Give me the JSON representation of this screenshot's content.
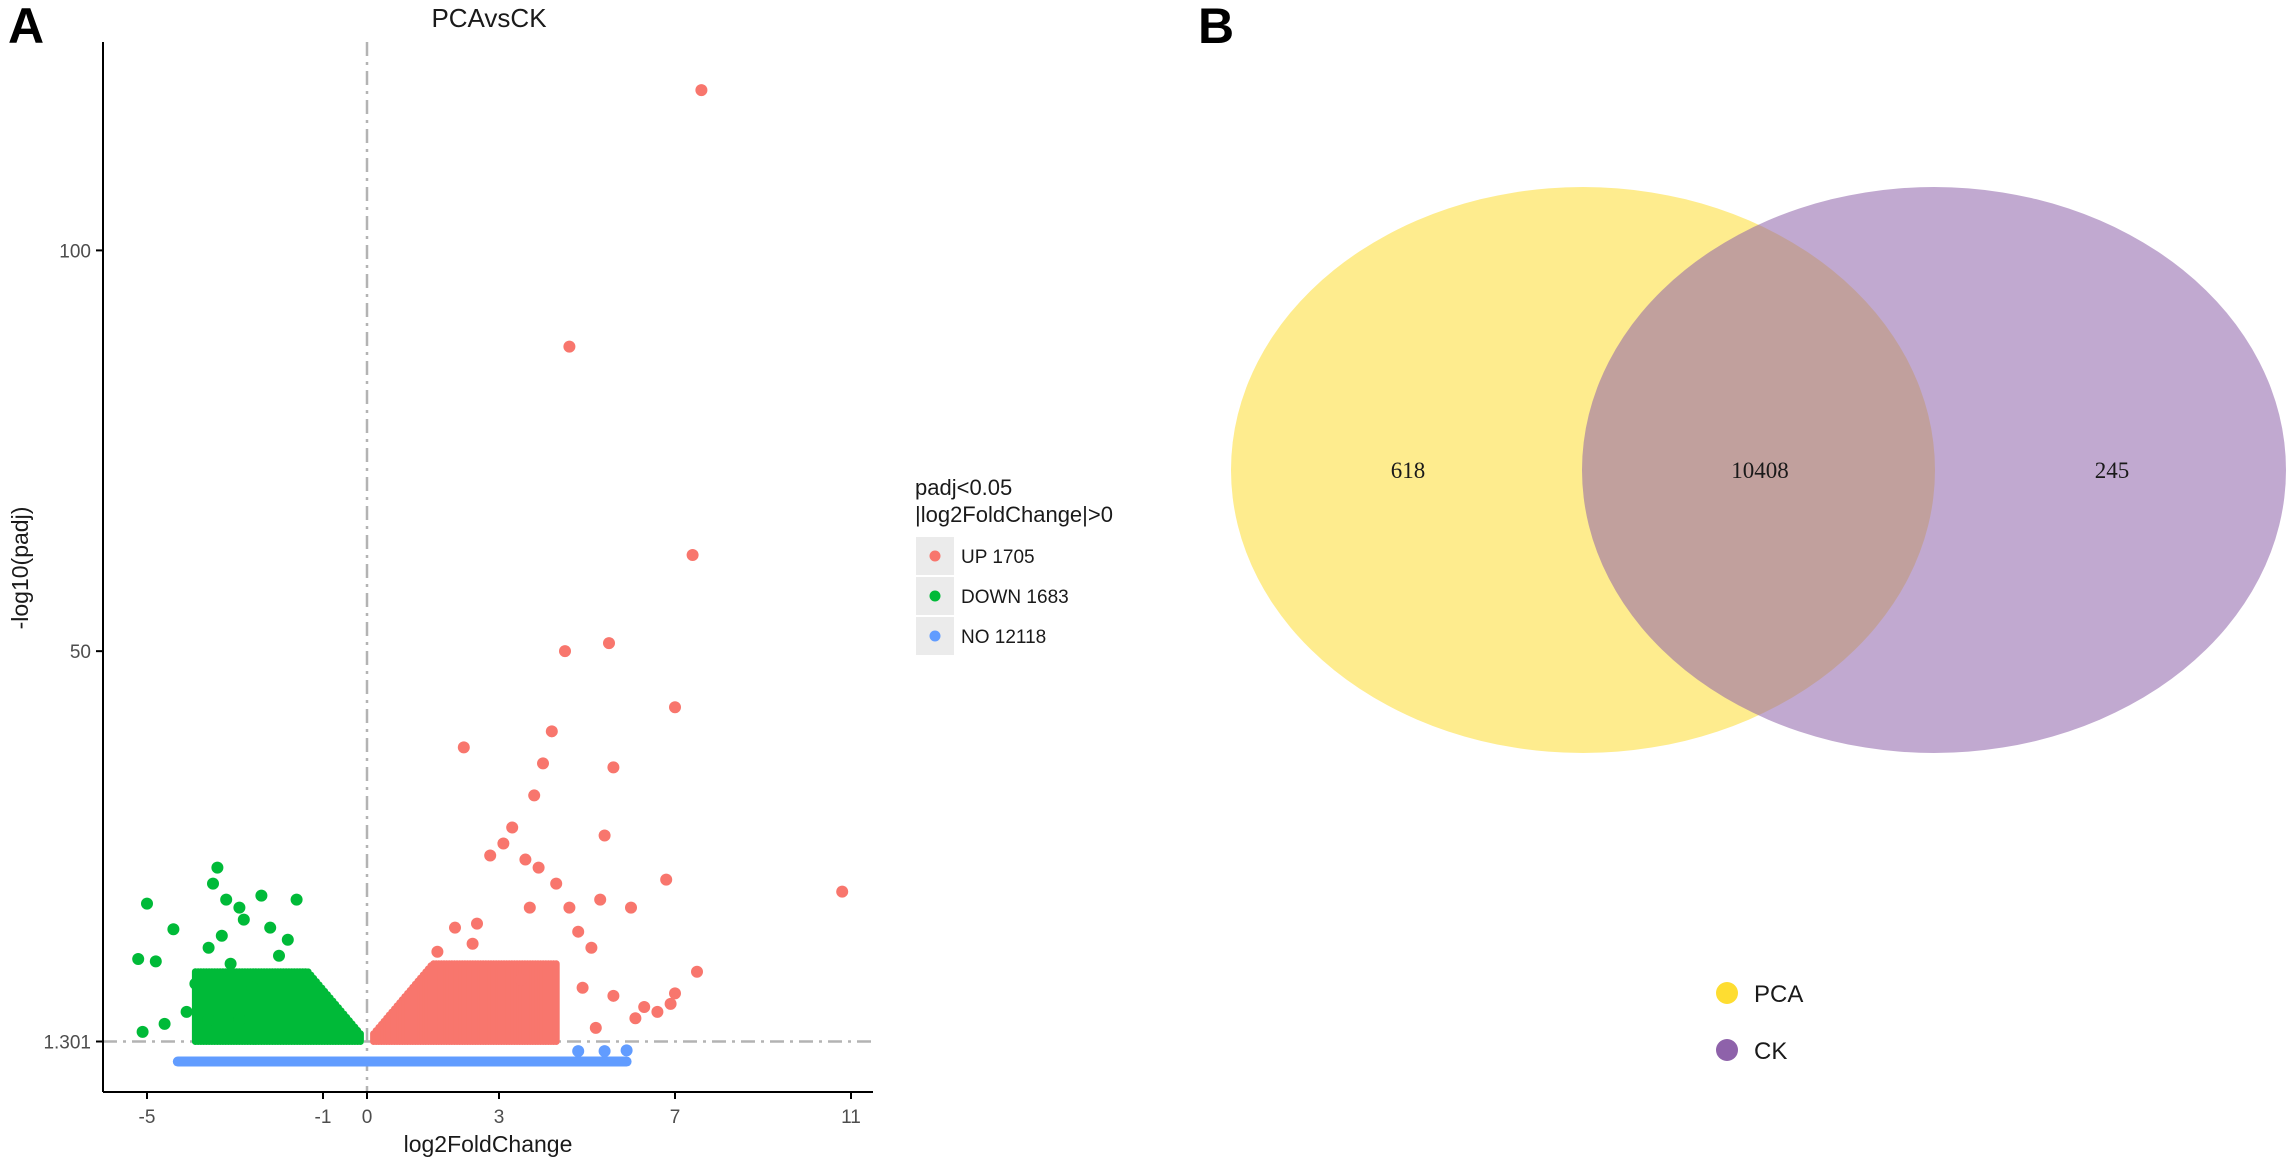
{
  "panels": {
    "a_label": "A",
    "b_label": "B"
  },
  "chart_data": [
    {
      "type": "scatter",
      "title": "PCAvsCK",
      "xlabel": "log2FoldChange",
      "ylabel": "-log10(padj)",
      "xlim": [
        -6,
        11.5
      ],
      "ylim": [
        -5,
        126
      ],
      "x_ticks": [
        {
          "value": -5,
          "label": "-5"
        },
        {
          "value": -1,
          "label": "-1"
        },
        {
          "value": 0,
          "label": "0"
        },
        {
          "value": 3,
          "label": "3"
        },
        {
          "value": 7,
          "label": "7"
        },
        {
          "value": 11,
          "label": "11"
        }
      ],
      "y_ticks": [
        {
          "value": 1.301,
          "label": "1.301"
        },
        {
          "value": 50,
          "label": "50"
        },
        {
          "value": 100,
          "label": "100"
        }
      ],
      "threshold_lines": {
        "x": 0,
        "y": 1.301
      },
      "legend": {
        "title_line1": "padj<0.05",
        "title_line2": "|log2FoldChange|>0",
        "entries": [
          {
            "label": "UP 1705",
            "color": "#f8766d"
          },
          {
            "label": "DOWN 1683",
            "color": "#00ba38"
          },
          {
            "label": "NO 12118",
            "color": "#619cff"
          }
        ]
      },
      "series": [
        {
          "name": "UP",
          "count": 1705,
          "color": "#f8766d",
          "points": [
            [
              7.6,
              120
            ],
            [
              4.6,
              88
            ],
            [
              7.4,
              62
            ],
            [
              4.5,
              50
            ],
            [
              5.5,
              51
            ],
            [
              7.0,
              43
            ],
            [
              2.2,
              38
            ],
            [
              4.2,
              40
            ],
            [
              4.0,
              36
            ],
            [
              5.6,
              35.5
            ],
            [
              3.8,
              32
            ],
            [
              5.4,
              27
            ],
            [
              3.3,
              28
            ],
            [
              3.1,
              26
            ],
            [
              2.8,
              24.5
            ],
            [
              3.6,
              24
            ],
            [
              3.9,
              23
            ],
            [
              4.3,
              21
            ],
            [
              10.8,
              20
            ],
            [
              6.8,
              21.5
            ],
            [
              6.0,
              18
            ],
            [
              5.3,
              19
            ],
            [
              4.6,
              18
            ],
            [
              3.7,
              18
            ],
            [
              2.5,
              16
            ],
            [
              2.0,
              15.5
            ],
            [
              2.4,
              13.5
            ],
            [
              1.6,
              12.5
            ],
            [
              5.1,
              13
            ],
            [
              4.8,
              15
            ],
            [
              7.5,
              10
            ],
            [
              3.5,
              9
            ],
            [
              4.9,
              8
            ],
            [
              5.6,
              7
            ],
            [
              6.3,
              5.6
            ],
            [
              6.6,
              5.0
            ],
            [
              6.9,
              6
            ],
            [
              7.0,
              7.3
            ],
            [
              5.2,
              3.0
            ],
            [
              6.1,
              4.2
            ]
          ]
        },
        {
          "name": "DOWN",
          "count": 1683,
          "color": "#00ba38",
          "points": [
            [
              -3.4,
              23
            ],
            [
              -3.5,
              21
            ],
            [
              -5.0,
              18.5
            ],
            [
              -2.4,
              19.5
            ],
            [
              -3.2,
              19
            ],
            [
              -1.6,
              19
            ],
            [
              -2.9,
              18
            ],
            [
              -2.8,
              16.5
            ],
            [
              -4.4,
              15.3
            ],
            [
              -2.2,
              15.5
            ],
            [
              -3.3,
              14.5
            ],
            [
              -1.8,
              14
            ],
            [
              -3.6,
              13
            ],
            [
              -5.2,
              11.6
            ],
            [
              -4.8,
              11.3
            ],
            [
              -3.1,
              11
            ],
            [
              -2.0,
              12
            ],
            [
              -3.9,
              8.5
            ],
            [
              -2.6,
              8
            ],
            [
              -3.6,
              4
            ],
            [
              -4.1,
              5
            ],
            [
              -4.6,
              3.5
            ],
            [
              -5.1,
              2.5
            ],
            [
              -2.9,
              4
            ]
          ]
        },
        {
          "name": "NO",
          "count": 12118,
          "color": "#619cff",
          "points": [
            [
              5.9,
              0.2
            ],
            [
              5.4,
              0.1
            ],
            [
              4.8,
              0.1
            ]
          ]
        }
      ]
    },
    {
      "type": "venn",
      "sets": [
        {
          "name": "PCA",
          "color": "#fedd31"
        },
        {
          "name": "CK",
          "color": "#8e62aa"
        }
      ],
      "regions": {
        "pca_only": "618",
        "both": "10408",
        "ck_only": "245"
      }
    }
  ]
}
